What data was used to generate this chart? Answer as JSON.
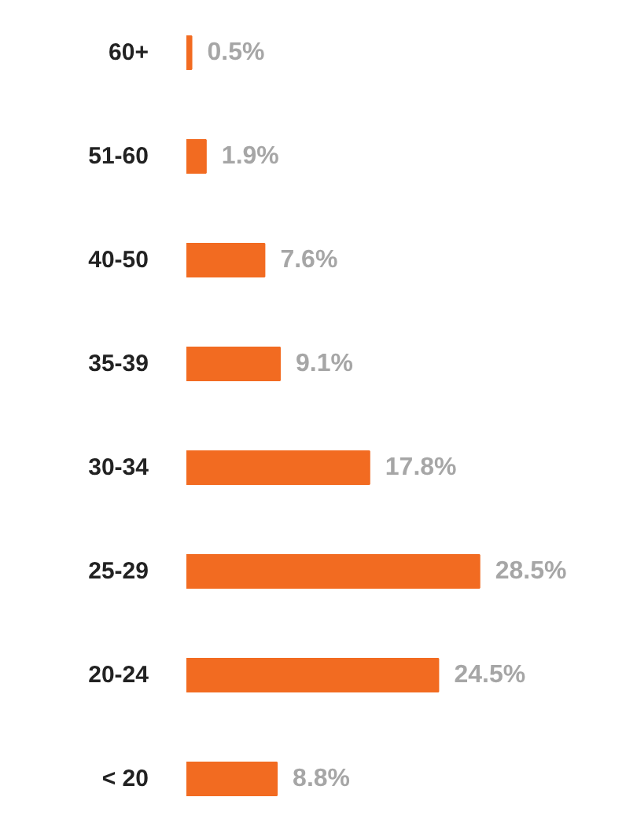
{
  "chart_data": {
    "type": "bar",
    "orientation": "horizontal",
    "categories": [
      "60+",
      "51-60",
      "40-50",
      "35-39",
      "30-34",
      "25-29",
      "20-24",
      "< 20"
    ],
    "values": [
      0.5,
      1.9,
      7.6,
      9.1,
      17.8,
      28.5,
      24.5,
      8.8
    ],
    "value_labels": [
      "0.5%",
      "1.9%",
      "7.6%",
      "9.1%",
      "17.8%",
      "28.5%",
      "24.5%",
      "8.8%"
    ],
    "color": "#f26b21",
    "grid": false,
    "tick_labels": "y"
  }
}
